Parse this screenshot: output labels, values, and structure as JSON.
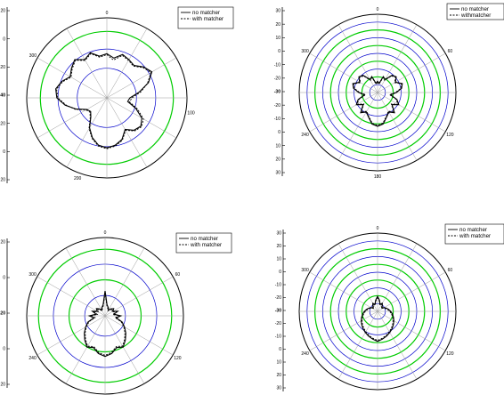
{
  "colors": {
    "background": "#ffffff",
    "axis": "#000000",
    "ring_green": "#00cc00",
    "ring_blue": "#0000cc",
    "spoke": "#9a9a9a",
    "series_no_matcher": "#000000",
    "series_with_matcher": "#000000"
  },
  "chart_data": [
    {
      "type": "polar",
      "panel": "top-left",
      "grid": true,
      "legend_position": "top-right",
      "angle_tick_labels": [
        "0",
        "100",
        "200",
        "300"
      ],
      "radial_tick_labels": [
        "20",
        "0",
        "-20",
        "-40",
        "-20",
        "0",
        "20"
      ],
      "radial_bold_labels": [
        false,
        false,
        false,
        true,
        false,
        false,
        false
      ],
      "series": [
        {
          "name": "no matcher",
          "style": "solid",
          "theta": [
            0,
            10,
            20,
            30,
            40,
            50,
            60,
            70,
            80,
            90,
            100,
            110,
            120,
            130,
            140,
            150,
            160,
            170,
            180,
            190,
            200,
            210,
            220,
            230,
            240,
            250,
            260,
            270,
            280,
            290,
            300,
            310,
            320,
            330,
            340,
            350
          ],
          "r": [
            6,
            2,
            8,
            6,
            4,
            10,
            14,
            6,
            -6,
            -16,
            -18,
            -8,
            2,
            6,
            4,
            -2,
            6,
            10,
            12,
            10,
            4,
            -4,
            -14,
            -18,
            -16,
            -6,
            4,
            12,
            14,
            10,
            4,
            8,
            12,
            6,
            10,
            4
          ]
        },
        {
          "name": "with matcher",
          "style": "dashed",
          "theta": [
            0,
            10,
            20,
            30,
            40,
            50,
            60,
            70,
            80,
            90,
            100,
            110,
            120,
            130,
            140,
            150,
            160,
            170,
            180,
            190,
            200,
            210,
            220,
            230,
            240,
            250,
            260,
            270,
            280,
            290,
            300,
            310,
            320,
            330,
            340,
            350
          ],
          "r": [
            5,
            0,
            7,
            5,
            3,
            9,
            13,
            5,
            -4,
            -14,
            -16,
            -6,
            4,
            7,
            5,
            -1,
            7,
            11,
            13,
            11,
            5,
            -3,
            -13,
            -17,
            -15,
            -5,
            3,
            11,
            13,
            9,
            3,
            7,
            11,
            5,
            9,
            3
          ]
        }
      ]
    },
    {
      "type": "polar",
      "panel": "top-right",
      "grid": true,
      "legend_position": "top-right",
      "angle_tick_labels": [
        "0",
        "60",
        "120",
        "180",
        "240",
        "300"
      ],
      "radial_tick_labels": [
        "30",
        "20",
        "10",
        "0",
        "-10",
        "-20",
        "-30",
        "-20",
        "-10",
        "0",
        "10",
        "20",
        "30"
      ],
      "radial_bold_labels": [
        false,
        false,
        false,
        false,
        false,
        false,
        true,
        false,
        false,
        false,
        false,
        false,
        false
      ],
      "series": [
        {
          "name": "no matcher",
          "style": "solid",
          "theta": [
            0,
            10,
            20,
            30,
            40,
            50,
            60,
            70,
            80,
            90,
            100,
            110,
            120,
            130,
            140,
            150,
            160,
            170,
            180,
            190,
            200,
            210,
            220,
            230,
            240,
            250,
            260,
            270,
            280,
            290,
            300,
            310,
            320,
            330,
            340,
            350
          ],
          "r": [
            -18,
            -20,
            -12,
            -14,
            -6,
            -4,
            -8,
            -2,
            -4,
            -10,
            -16,
            -8,
            -4,
            -10,
            -2,
            -6,
            -2,
            4,
            6,
            4,
            -2,
            -6,
            -2,
            -10,
            -4,
            -8,
            -16,
            -10,
            -4,
            -2,
            -8,
            -4,
            -6,
            -14,
            -12,
            -20
          ]
        },
        {
          "name": "withmatcher",
          "style": "dashed",
          "theta": [
            0,
            10,
            20,
            30,
            40,
            50,
            60,
            70,
            80,
            90,
            100,
            110,
            120,
            130,
            140,
            150,
            160,
            170,
            180,
            190,
            200,
            210,
            220,
            230,
            240,
            250,
            260,
            270,
            280,
            290,
            300,
            310,
            320,
            330,
            340,
            350
          ],
          "r": [
            -19,
            -21,
            -13,
            -15,
            -7,
            -5,
            -9,
            -3,
            -5,
            -11,
            -17,
            -9,
            -5,
            -11,
            -3,
            -7,
            -3,
            3,
            5,
            3,
            -3,
            -7,
            -3,
            -11,
            -5,
            -9,
            -17,
            -11,
            -5,
            -3,
            -9,
            -5,
            -7,
            -15,
            -13,
            -21
          ]
        }
      ]
    },
    {
      "type": "polar",
      "panel": "bottom-left",
      "grid": true,
      "legend_position": "top-right",
      "angle_tick_labels": [
        "0",
        "60",
        "120",
        "240",
        "300"
      ],
      "radial_tick_labels": [
        "20",
        "0",
        "-20",
        "0",
        "20"
      ],
      "radial_bold_labels": [
        false,
        false,
        true,
        false,
        false
      ],
      "series": [
        {
          "name": "no matcher",
          "style": "solid",
          "theta": [
            0,
            10,
            20,
            30,
            40,
            50,
            60,
            70,
            80,
            90,
            100,
            110,
            120,
            130,
            140,
            150,
            160,
            170,
            180,
            190,
            200,
            210,
            220,
            230,
            240,
            250,
            260,
            270,
            280,
            290,
            300,
            310,
            320,
            330,
            340,
            350
          ],
          "r": [
            -8,
            -20,
            -22,
            -24,
            -22,
            -20,
            -22,
            -18,
            -22,
            -16,
            -20,
            -14,
            -10,
            -6,
            -2,
            2,
            0,
            4,
            6,
            4,
            0,
            2,
            -2,
            -6,
            -10,
            -14,
            -20,
            -16,
            -22,
            -18,
            -22,
            -20,
            -22,
            -24,
            -22,
            -20
          ]
        },
        {
          "name": "with matcher",
          "style": "dashed",
          "theta": [
            0,
            10,
            20,
            30,
            40,
            50,
            60,
            70,
            80,
            90,
            100,
            110,
            120,
            130,
            140,
            150,
            160,
            170,
            180,
            190,
            200,
            210,
            220,
            230,
            240,
            250,
            260,
            270,
            280,
            290,
            300,
            310,
            320,
            330,
            340,
            350
          ],
          "r": [
            -9,
            -21,
            -23,
            -25,
            -23,
            -21,
            -23,
            -19,
            -23,
            -17,
            -21,
            -15,
            -11,
            -7,
            -3,
            1,
            -1,
            3,
            5,
            3,
            -1,
            1,
            -3,
            -7,
            -11,
            -15,
            -21,
            -17,
            -23,
            -19,
            -23,
            -21,
            -23,
            -25,
            -23,
            -21
          ]
        }
      ]
    },
    {
      "type": "polar",
      "panel": "bottom-right",
      "grid": true,
      "legend_position": "top-right",
      "angle_tick_labels": [
        "0",
        "60",
        "120",
        "240",
        "300"
      ],
      "radial_tick_labels": [
        "30",
        "20",
        "10",
        "0",
        "-10",
        "-20",
        "-30",
        "-20",
        "-10",
        "0",
        "10",
        "20",
        "30"
      ],
      "radial_bold_labels": [
        false,
        false,
        false,
        false,
        false,
        false,
        true,
        false,
        false,
        false,
        false,
        false,
        false
      ],
      "series": [
        {
          "name": "no matcher",
          "style": "solid",
          "theta": [
            0,
            10,
            20,
            30,
            40,
            50,
            60,
            70,
            80,
            90,
            100,
            110,
            120,
            130,
            140,
            150,
            160,
            170,
            180,
            190,
            200,
            210,
            220,
            230,
            240,
            250,
            260,
            270,
            280,
            290,
            300,
            310,
            320,
            330,
            340,
            350
          ],
          "r": [
            -14,
            -18,
            -22,
            -20,
            -22,
            -24,
            -22,
            -20,
            -18,
            -16,
            -14,
            -12,
            -10,
            -8,
            -6,
            -4,
            -2,
            0,
            2,
            0,
            -2,
            -4,
            -6,
            -8,
            -10,
            -12,
            -14,
            -16,
            -18,
            -20,
            -22,
            -24,
            -22,
            -20,
            -22,
            -18
          ]
        },
        {
          "name": "with matcher",
          "style": "dashed",
          "theta": [
            0,
            10,
            20,
            30,
            40,
            50,
            60,
            70,
            80,
            90,
            100,
            110,
            120,
            130,
            140,
            150,
            160,
            170,
            180,
            190,
            200,
            210,
            220,
            230,
            240,
            250,
            260,
            270,
            280,
            290,
            300,
            310,
            320,
            330,
            340,
            350
          ],
          "r": [
            -15,
            -19,
            -23,
            -21,
            -23,
            -25,
            -23,
            -21,
            -19,
            -17,
            -15,
            -13,
            -11,
            -9,
            -7,
            -5,
            -3,
            -1,
            1,
            -1,
            -3,
            -5,
            -7,
            -9,
            -11,
            -13,
            -15,
            -17,
            -19,
            -21,
            -23,
            -25,
            -23,
            -21,
            -23,
            -19
          ]
        }
      ]
    }
  ]
}
